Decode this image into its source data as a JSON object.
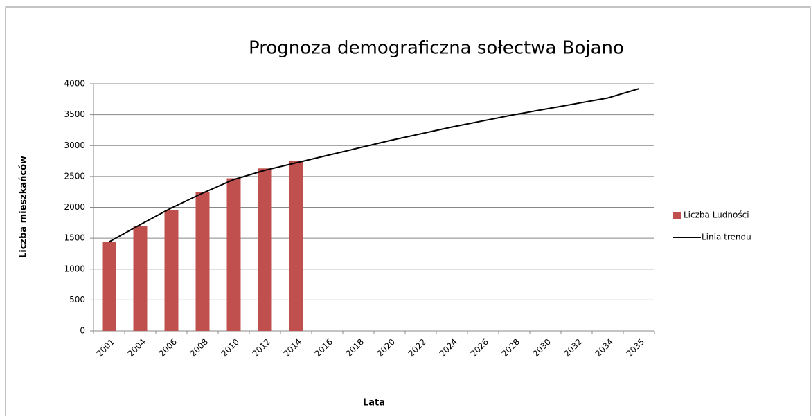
{
  "chart_data": {
    "type": "bar",
    "title": "Prognoza demograficzna sołectwa Bojano",
    "x_label": "Lata",
    "y_label": "Liczba mieszkańców",
    "categories": [
      "2001",
      "2004",
      "2006",
      "2008",
      "2010",
      "2012",
      "2014",
      "2016",
      "2018",
      "2020",
      "2022",
      "2024",
      "2026",
      "2028",
      "2030",
      "2032",
      "2034",
      "2035"
    ],
    "series": [
      {
        "name": "Liczba Ludności",
        "type": "bar",
        "color": "#c0504d",
        "values": [
          1440,
          1700,
          1950,
          2250,
          2470,
          2630,
          2750,
          null,
          null,
          null,
          null,
          null,
          null,
          null,
          null,
          null,
          null,
          null
        ]
      },
      {
        "name": "Linia trendu",
        "type": "line",
        "color": "#000000",
        "values": [
          1440,
          1720,
          1990,
          2230,
          2450,
          2600,
          2720,
          2840,
          2960,
          3080,
          3190,
          3300,
          3400,
          3500,
          3590,
          3680,
          3770,
          3920
        ]
      }
    ],
    "ylim": [
      0,
      4000
    ],
    "yticks": [
      0,
      500,
      1000,
      1500,
      2000,
      2500,
      3000,
      3500,
      4000
    ],
    "grid": true,
    "legend": "right"
  }
}
